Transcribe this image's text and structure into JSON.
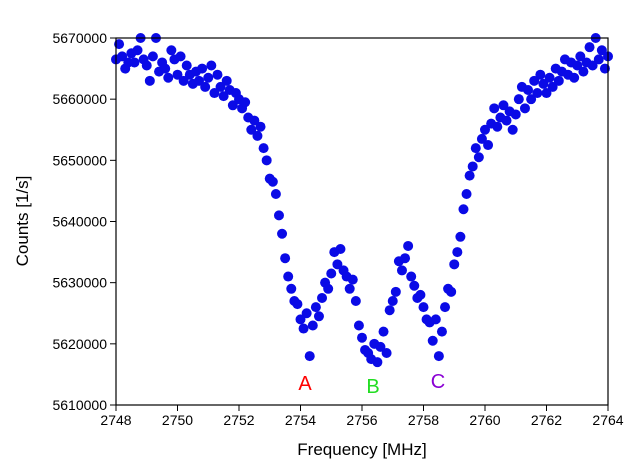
{
  "chart_data": {
    "type": "scatter",
    "x_label": "Frequency [MHz]",
    "y_label": "Counts [1/s]",
    "xlim": [
      2748,
      2764
    ],
    "ylim": [
      5610000,
      5670000
    ],
    "xticks": [
      2748,
      2750,
      2752,
      2754,
      2756,
      2758,
      2760,
      2762,
      2764
    ],
    "yticks": [
      5610000,
      5620000,
      5630000,
      5640000,
      5650000,
      5660000,
      5670000
    ],
    "annotations": [
      {
        "text": "A",
        "color": "#ff0000"
      },
      {
        "text": "B",
        "color": "#22dd22"
      },
      {
        "text": "C",
        "color": "#8a00d4"
      }
    ],
    "series": [
      {
        "color": "#0a0ae6",
        "x": [
          2748.0,
          2748.1,
          2748.2,
          2748.3,
          2748.4,
          2748.5,
          2748.6,
          2748.7,
          2748.8,
          2748.9,
          2749.0,
          2749.1,
          2749.2,
          2749.3,
          2749.4,
          2749.5,
          2749.6,
          2749.7,
          2749.8,
          2749.9,
          2750.0,
          2750.1,
          2750.2,
          2750.3,
          2750.4,
          2750.5,
          2750.6,
          2750.7,
          2750.8,
          2750.9,
          2751.0,
          2751.1,
          2751.2,
          2751.3,
          2751.4,
          2751.5,
          2751.6,
          2751.7,
          2751.8,
          2751.9,
          2752.0,
          2752.1,
          2752.2,
          2752.3,
          2752.4,
          2752.5,
          2752.6,
          2752.7,
          2752.8,
          2752.9,
          2753.0,
          2753.1,
          2753.2,
          2753.3,
          2753.4,
          2753.5,
          2753.6,
          2753.7,
          2753.8,
          2753.9,
          2754.0,
          2754.1,
          2754.2,
          2754.3,
          2754.4,
          2754.5,
          2754.6,
          2754.7,
          2754.8,
          2754.9,
          2755.0,
          2755.1,
          2755.2,
          2755.3,
          2755.4,
          2755.5,
          2755.6,
          2755.7,
          2755.8,
          2755.9,
          2756.0,
          2756.1,
          2756.2,
          2756.3,
          2756.4,
          2756.5,
          2756.6,
          2756.7,
          2756.8,
          2756.9,
          2757.0,
          2757.1,
          2757.2,
          2757.3,
          2757.4,
          2757.5,
          2757.6,
          2757.7,
          2757.8,
          2757.9,
          2758.0,
          2758.1,
          2758.2,
          2758.3,
          2758.4,
          2758.5,
          2758.6,
          2758.7,
          2758.8,
          2758.9,
          2759.0,
          2759.1,
          2759.2,
          2759.3,
          2759.4,
          2759.5,
          2759.6,
          2759.7,
          2759.8,
          2759.9,
          2760.0,
          2760.1,
          2760.2,
          2760.3,
          2760.4,
          2760.5,
          2760.6,
          2760.7,
          2760.8,
          2760.9,
          2761.0,
          2761.1,
          2761.2,
          2761.3,
          2761.4,
          2761.5,
          2761.6,
          2761.7,
          2761.8,
          2761.9,
          2762.0,
          2762.1,
          2762.2,
          2762.3,
          2762.4,
          2762.5,
          2762.6,
          2762.7,
          2762.8,
          2762.9,
          2763.0,
          2763.1,
          2763.2,
          2763.3,
          2763.4,
          2763.5,
          2763.6,
          2763.7,
          2763.8,
          2763.9,
          2764.0
        ],
        "values": [
          5666500,
          5669000,
          5667000,
          5665000,
          5666000,
          5667500,
          5666000,
          5668000,
          5670000,
          5666500,
          5665500,
          5663000,
          5667000,
          5670000,
          5664500,
          5666000,
          5665000,
          5663500,
          5668000,
          5666500,
          5664000,
          5667000,
          5663000,
          5665500,
          5664000,
          5662500,
          5664500,
          5663000,
          5665000,
          5662000,
          5663500,
          5665500,
          5661000,
          5664000,
          5662000,
          5660500,
          5663000,
          5661500,
          5659000,
          5661000,
          5660000,
          5658500,
          5659500,
          5657000,
          5655000,
          5656500,
          5654000,
          5655500,
          5652000,
          5650000,
          5647000,
          5646500,
          5644500,
          5641000,
          5638000,
          5634000,
          5631000,
          5629000,
          5627000,
          5626500,
          5624000,
          5622500,
          5625000,
          5618000,
          5623000,
          5626000,
          5624500,
          5627500,
          5630000,
          5629000,
          5631500,
          5635000,
          5633000,
          5635500,
          5632000,
          5631000,
          5629000,
          5630500,
          5627000,
          5623000,
          5621000,
          5619000,
          5618500,
          5617500,
          5620000,
          5617000,
          5619500,
          5622000,
          5618500,
          5625500,
          5627000,
          5628500,
          5633500,
          5632000,
          5634000,
          5636000,
          5631000,
          5629500,
          5627500,
          5628000,
          5626000,
          5624000,
          5623500,
          5620500,
          5624000,
          5618000,
          5622000,
          5626000,
          5629000,
          5628500,
          5633000,
          5635000,
          5637500,
          5642000,
          5644500,
          5647500,
          5649000,
          5652000,
          5650500,
          5653500,
          5655000,
          5652500,
          5656000,
          5658500,
          5655500,
          5657000,
          5659000,
          5656500,
          5658000,
          5655000,
          5657500,
          5660000,
          5662000,
          5658500,
          5661500,
          5660000,
          5663000,
          5661000,
          5664000,
          5662500,
          5661000,
          5663500,
          5662000,
          5665000,
          5663000,
          5664500,
          5666500,
          5664000,
          5666000,
          5663500,
          5665500,
          5667000,
          5664500,
          5666000,
          5668500,
          5665500,
          5670000,
          5666500,
          5668000,
          5665000,
          5667000
        ]
      }
    ]
  }
}
